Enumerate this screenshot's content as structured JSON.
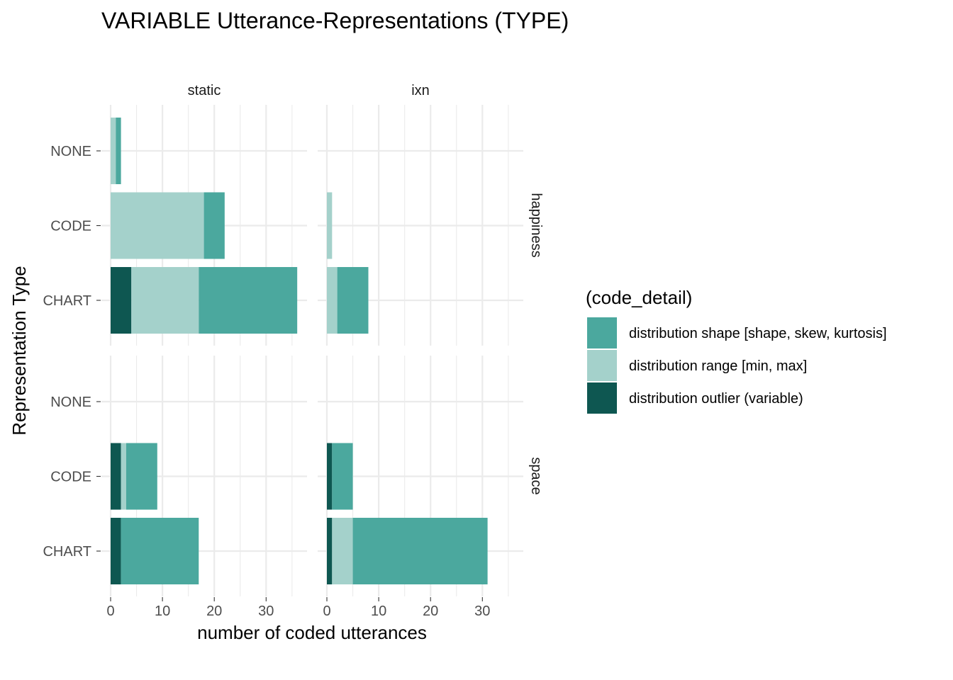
{
  "chart_data": {
    "type": "bar",
    "orientation": "horizontal",
    "stacked": true,
    "title": "VARIABLE Utterance-Representations (TYPE)",
    "xlabel": "number of coded utterances",
    "ylabel": "Representation Type",
    "xlim": [
      0,
      37
    ],
    "x_ticks": [
      "0",
      "10",
      "20",
      "30"
    ],
    "x_tick_values": [
      0,
      10,
      20,
      30
    ],
    "categories": [
      "NONE",
      "CODE",
      "CHART"
    ],
    "column_facets": [
      "static",
      "ixn"
    ],
    "row_facets": [
      "happiness",
      "space"
    ],
    "grid": true,
    "legend": {
      "title": "(code_detail)",
      "position": "right",
      "entries": [
        {
          "key": "shape",
          "label": "distribution shape [shape, skew, kurtosis]",
          "color": "#4BA89E"
        },
        {
          "key": "range",
          "label": "distribution range [min, max]",
          "color": "#A4D1CB"
        },
        {
          "key": "outlier",
          "label": "distribution outlier (variable)",
          "color": "#0E5751"
        }
      ]
    },
    "stack_order": [
      "outlier",
      "range",
      "shape"
    ],
    "panels": [
      {
        "row": "happiness",
        "col": "static",
        "bars": [
          {
            "category": "NONE",
            "outlier": 0,
            "range": 1,
            "shape": 1
          },
          {
            "category": "CODE",
            "outlier": 0,
            "range": 18,
            "shape": 4
          },
          {
            "category": "CHART",
            "outlier": 4,
            "range": 13,
            "shape": 19
          }
        ]
      },
      {
        "row": "happiness",
        "col": "ixn",
        "bars": [
          {
            "category": "NONE",
            "outlier": 0,
            "range": 0,
            "shape": 0
          },
          {
            "category": "CODE",
            "outlier": 0,
            "range": 1,
            "shape": 0
          },
          {
            "category": "CHART",
            "outlier": 0,
            "range": 2,
            "shape": 6
          }
        ]
      },
      {
        "row": "space",
        "col": "static",
        "bars": [
          {
            "category": "NONE",
            "outlier": 0,
            "range": 0,
            "shape": 0
          },
          {
            "category": "CODE",
            "outlier": 2,
            "range": 1,
            "shape": 6
          },
          {
            "category": "CHART",
            "outlier": 2,
            "range": 0,
            "shape": 15
          }
        ]
      },
      {
        "row": "space",
        "col": "ixn",
        "bars": [
          {
            "category": "NONE",
            "outlier": 0,
            "range": 0,
            "shape": 0
          },
          {
            "category": "CODE",
            "outlier": 1,
            "range": 0,
            "shape": 4
          },
          {
            "category": "CHART",
            "outlier": 1,
            "range": 4,
            "shape": 26
          }
        ]
      }
    ]
  }
}
